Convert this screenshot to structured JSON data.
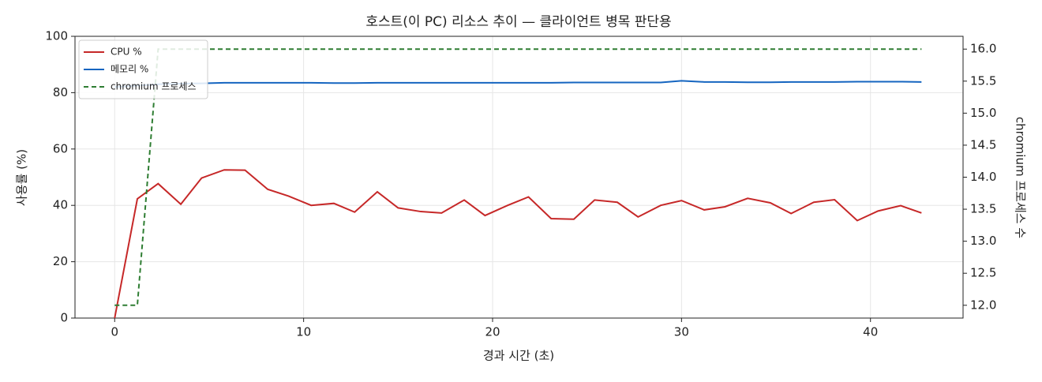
{
  "chart_data": {
    "type": "line",
    "title": "호스트(이 PC) 리소스 추이 — 클라이언트 병목 판단용",
    "x_label": "경과 시간 (초)",
    "y_label": "사용률 (%)",
    "y2_label": "chromium 프로세스 수",
    "x": [
      0,
      1.2,
      2.3,
      3.5,
      4.6,
      5.8,
      6.9,
      8.1,
      9.2,
      10.4,
      11.6,
      12.7,
      13.9,
      15.0,
      16.2,
      17.3,
      18.5,
      19.6,
      20.8,
      21.9,
      23.1,
      24.3,
      25.4,
      26.6,
      27.7,
      28.9,
      30.0,
      31.2,
      32.3,
      33.5,
      34.7,
      35.8,
      37.0,
      38.1,
      39.3,
      40.4,
      41.6,
      42.7
    ],
    "series": [
      {
        "name": "CPU %",
        "color": "#c62828",
        "values": [
          0,
          42.3,
          47.7,
          40.4,
          49.7,
          52.6,
          52.5,
          45.7,
          43.3,
          40.0,
          40.7,
          37.6,
          44.8,
          39.1,
          37.8,
          37.3,
          41.9,
          36.4,
          40.0,
          43.0,
          35.3,
          35.1,
          41.9,
          41.1,
          35.9,
          40.0,
          41.7,
          38.4,
          39.5,
          42.5,
          40.9,
          37.1,
          41.1,
          42.0,
          34.6,
          38.0,
          39.9,
          37.3
        ]
      },
      {
        "name": "메모리 %",
        "color": "#1565c0",
        "values": [
          82.0,
          82.5,
          83.0,
          83.2,
          83.3,
          83.5,
          83.5,
          83.5,
          83.5,
          83.5,
          83.4,
          83.4,
          83.5,
          83.5,
          83.5,
          83.5,
          83.5,
          83.5,
          83.5,
          83.5,
          83.5,
          83.6,
          83.6,
          83.6,
          83.6,
          83.6,
          84.2,
          83.8,
          83.8,
          83.7,
          83.7,
          83.8,
          83.8,
          83.8,
          83.9,
          83.9,
          83.9,
          83.8
        ]
      },
      {
        "name": "chromium 프로세스",
        "color": "#2e7d32",
        "dashed": true,
        "axis": "y2",
        "values": [
          12,
          12,
          16,
          16,
          16,
          16,
          16,
          16,
          16,
          16,
          16,
          16,
          16,
          16,
          16,
          16,
          16,
          16,
          16,
          16,
          16,
          16,
          16,
          16,
          16,
          16,
          16,
          16,
          16,
          16,
          16,
          16,
          16,
          16,
          16,
          16,
          16,
          16
        ]
      }
    ],
    "xlim": [
      -2.1,
      44.9
    ],
    "xticks": [
      0,
      10,
      20,
      30,
      40
    ],
    "ylim": [
      0,
      100
    ],
    "yticks": [
      0,
      20,
      40,
      60,
      80,
      100
    ],
    "y2lim": [
      11.8,
      16.2
    ],
    "y2ticks": [
      {
        "value": 12,
        "label": "12.0"
      },
      12.5,
      {
        "value": 13,
        "label": "13.0"
      },
      13.5,
      {
        "value": 14,
        "label": "14.0"
      },
      14.5,
      {
        "value": 15,
        "label": "15.0"
      },
      15.5,
      {
        "value": 16,
        "label": "16.0"
      }
    ],
    "grid": true,
    "legend": "upper left"
  }
}
